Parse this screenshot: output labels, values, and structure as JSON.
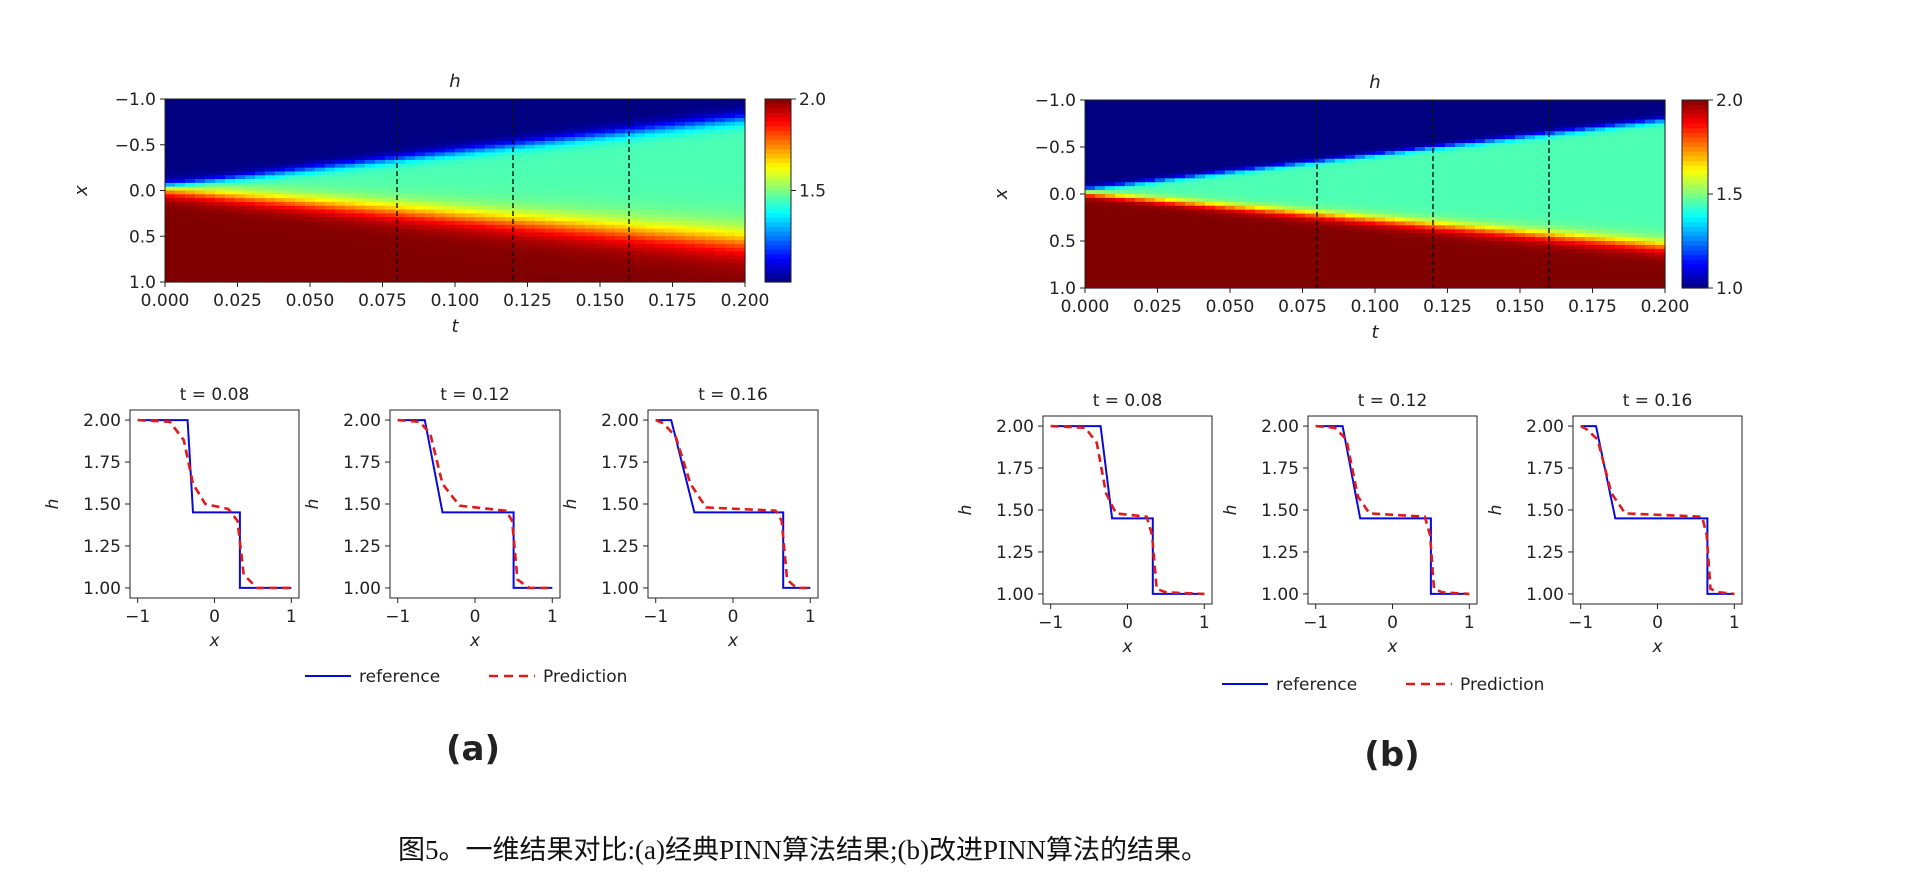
{
  "figure": {
    "caption": "图5。一维结果对比:(a)经典PINN算法结果;(b)改进PINN算法的结果。",
    "panel_labels": [
      "(a)",
      "(b)"
    ]
  },
  "chart_data": [
    {
      "panel": "(a)",
      "type": "heatmap",
      "title": "h",
      "xlabel": "t",
      "ylabel": "x",
      "xlim": [
        0,
        0.2
      ],
      "ylim": [
        -1,
        1
      ],
      "y_inverted": true,
      "x_ticks": [
        "0.000",
        "0.025",
        "0.050",
        "0.075",
        "0.100",
        "0.125",
        "0.150",
        "0.175",
        "0.200"
      ],
      "y_ticks": [
        "−1.0",
        "−0.5",
        "0.0",
        "0.5",
        "1.0"
      ],
      "colorbar": {
        "min": 1.0,
        "max": 2.0,
        "colormap": "jet",
        "ticks": [
          "2.0",
          "1.5"
        ]
      },
      "vlines_t": [
        0.08,
        0.12,
        0.16
      ],
      "field": {
        "h_left": 2.0,
        "h_right": 1.0,
        "h_middle": 1.45,
        "left_wave_speed": -4.1,
        "right_wave_speed": 2.05,
        "smoothing": 0.09
      },
      "slices": [
        {
          "title": "t = 0.08",
          "t": 0.08,
          "reference": [
            [
              -1,
              2.0
            ],
            [
              -0.35,
              2.0
            ],
            [
              -0.28,
              1.45
            ],
            [
              0.33,
              1.45
            ],
            [
              0.33,
              1.0
            ],
            [
              1,
              1.0
            ]
          ],
          "prediction": [
            [
              -1,
              2.0
            ],
            [
              -0.58,
              1.99
            ],
            [
              -0.4,
              1.88
            ],
            [
              -0.28,
              1.62
            ],
            [
              -0.12,
              1.5
            ],
            [
              0.18,
              1.47
            ],
            [
              0.3,
              1.4
            ],
            [
              0.38,
              1.08
            ],
            [
              0.55,
              1.0
            ],
            [
              1,
              1.0
            ]
          ]
        },
        {
          "title": "t = 0.12",
          "t": 0.12,
          "reference": [
            [
              -1,
              2.0
            ],
            [
              -0.65,
              2.0
            ],
            [
              -0.42,
              1.45
            ],
            [
              0.5,
              1.45
            ],
            [
              0.5,
              1.0
            ],
            [
              1,
              1.0
            ]
          ],
          "prediction": [
            [
              -1,
              2.0
            ],
            [
              -0.72,
              1.99
            ],
            [
              -0.58,
              1.92
            ],
            [
              -0.42,
              1.62
            ],
            [
              -0.2,
              1.49
            ],
            [
              0.4,
              1.46
            ],
            [
              0.48,
              1.4
            ],
            [
              0.55,
              1.05
            ],
            [
              0.7,
              1.0
            ],
            [
              1,
              1.0
            ]
          ]
        },
        {
          "title": "t = 0.16",
          "t": 0.16,
          "reference": [
            [
              -1,
              2.0
            ],
            [
              -0.8,
              2.0
            ],
            [
              -0.5,
              1.45
            ],
            [
              0.65,
              1.45
            ],
            [
              0.65,
              1.0
            ],
            [
              1,
              1.0
            ]
          ],
          "prediction": [
            [
              -1,
              2.0
            ],
            [
              -0.9,
              1.98
            ],
            [
              -0.74,
              1.9
            ],
            [
              -0.55,
              1.62
            ],
            [
              -0.35,
              1.48
            ],
            [
              0.55,
              1.46
            ],
            [
              0.63,
              1.4
            ],
            [
              0.7,
              1.05
            ],
            [
              0.82,
              1.0
            ],
            [
              1,
              1.0
            ]
          ]
        }
      ],
      "slice_axes": {
        "xlabel": "x",
        "ylabel": "h",
        "xlim": [
          -1.1,
          1.1
        ],
        "ylim": [
          0.94,
          2.06
        ],
        "x_ticks": [
          "−1",
          "0",
          "1"
        ],
        "y_ticks": [
          "2.00",
          "1.75",
          "1.50",
          "1.25",
          "1.00"
        ]
      },
      "legend": {
        "position": "bottom-center",
        "entries": [
          {
            "name": "reference",
            "color": "#0a0ad8",
            "style": "solid"
          },
          {
            "name": "Prediction",
            "color": "#e01b1b",
            "style": "dashed"
          }
        ]
      }
    },
    {
      "panel": "(b)",
      "type": "heatmap",
      "title": "h",
      "xlabel": "t",
      "ylabel": "x",
      "xlim": [
        0,
        0.2
      ],
      "ylim": [
        -1,
        1
      ],
      "y_inverted": true,
      "x_ticks": [
        "0.000",
        "0.025",
        "0.050",
        "0.075",
        "0.100",
        "0.125",
        "0.150",
        "0.175",
        "0.200"
      ],
      "y_ticks": [
        "−1.0",
        "−0.5",
        "0.0",
        "0.5",
        "1.0"
      ],
      "colorbar": {
        "min": 1.0,
        "max": 2.0,
        "colormap": "jet",
        "ticks": [
          "2.0",
          "1.5",
          "1.0"
        ]
      },
      "vlines_t": [
        0.08,
        0.12,
        0.16
      ],
      "field": {
        "h_left": 2.0,
        "h_right": 1.0,
        "h_middle": 1.45,
        "left_wave_speed": -4.1,
        "right_wave_speed": 2.05,
        "smoothing": 0.04
      },
      "slices": [
        {
          "title": "t = 0.08",
          "t": 0.08,
          "reference": [
            [
              -1,
              2.0
            ],
            [
              -0.35,
              2.0
            ],
            [
              -0.2,
              1.45
            ],
            [
              0.33,
              1.45
            ],
            [
              0.33,
              1.0
            ],
            [
              1,
              1.0
            ]
          ],
          "prediction": [
            [
              -1,
              2.0
            ],
            [
              -0.55,
              1.99
            ],
            [
              -0.4,
              1.9
            ],
            [
              -0.28,
              1.6
            ],
            [
              -0.15,
              1.48
            ],
            [
              0.25,
              1.46
            ],
            [
              0.32,
              1.35
            ],
            [
              0.38,
              1.03
            ],
            [
              0.5,
              1.01
            ],
            [
              1,
              1.0
            ]
          ]
        },
        {
          "title": "t = 0.12",
          "t": 0.12,
          "reference": [
            [
              -1,
              2.0
            ],
            [
              -0.65,
              2.0
            ],
            [
              -0.42,
              1.45
            ],
            [
              0.5,
              1.45
            ],
            [
              0.5,
              1.0
            ],
            [
              1,
              1.0
            ]
          ],
          "prediction": [
            [
              -1,
              2.0
            ],
            [
              -0.75,
              1.99
            ],
            [
              -0.6,
              1.92
            ],
            [
              -0.45,
              1.58
            ],
            [
              -0.3,
              1.48
            ],
            [
              0.42,
              1.46
            ],
            [
              0.49,
              1.35
            ],
            [
              0.54,
              1.03
            ],
            [
              0.65,
              1.01
            ],
            [
              1,
              1.0
            ]
          ]
        },
        {
          "title": "t = 0.16",
          "t": 0.16,
          "reference": [
            [
              -1,
              2.0
            ],
            [
              -0.8,
              2.0
            ],
            [
              -0.55,
              1.45
            ],
            [
              0.65,
              1.45
            ],
            [
              0.65,
              1.0
            ],
            [
              1,
              1.0
            ]
          ],
          "prediction": [
            [
              -1,
              2.0
            ],
            [
              -0.92,
              1.98
            ],
            [
              -0.78,
              1.92
            ],
            [
              -0.6,
              1.6
            ],
            [
              -0.42,
              1.48
            ],
            [
              0.58,
              1.46
            ],
            [
              0.64,
              1.35
            ],
            [
              0.69,
              1.03
            ],
            [
              0.8,
              1.01
            ],
            [
              1,
              1.0
            ]
          ]
        }
      ],
      "slice_axes": {
        "xlabel": "x",
        "ylabel": "h",
        "xlim": [
          -1.1,
          1.1
        ],
        "ylim": [
          0.94,
          2.06
        ],
        "x_ticks": [
          "−1",
          "0",
          "1"
        ],
        "y_ticks": [
          "2.00",
          "1.75",
          "1.50",
          "1.25",
          "1.00"
        ]
      },
      "legend": {
        "position": "bottom-center",
        "entries": [
          {
            "name": "reference",
            "color": "#0a0ad8",
            "style": "solid"
          },
          {
            "name": "Prediction",
            "color": "#e01b1b",
            "style": "dashed"
          }
        ]
      }
    }
  ]
}
